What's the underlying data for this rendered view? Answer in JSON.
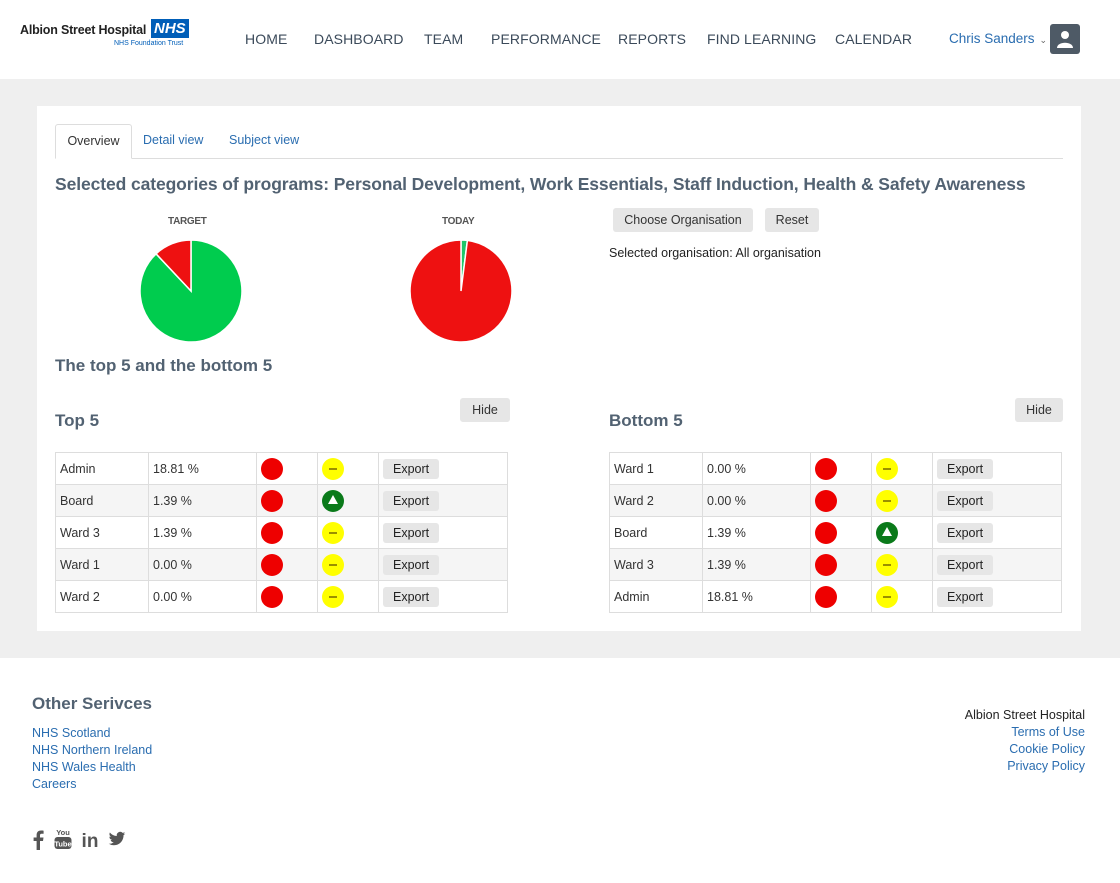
{
  "header": {
    "logo": {
      "name": "Albion Street Hospital",
      "badge": "NHS",
      "subtitle": "NHS Foundation Trust"
    },
    "nav": [
      "HOME",
      "DASHBOARD",
      "TEAM",
      "PERFORMANCE",
      "REPORTS",
      "FIND LEARNING",
      "CALENDAR"
    ],
    "user_name": "Chris Sanders",
    "user_chevron": "⌄",
    "avatar_icon": "user-icon"
  },
  "tabs": [
    "Overview",
    "Detail view",
    "Subject view"
  ],
  "selected_title": "Selected categories of programs: Personal Development, Work Essentials, Staff Induction, Health & Safety Awareness",
  "chart_data": [
    {
      "type": "pie",
      "title": "TARGET",
      "values": [
        88,
        12
      ],
      "colors": [
        "#00cc4e",
        "#ee1111"
      ]
    },
    {
      "type": "pie",
      "title": "TODAY",
      "values": [
        2,
        98
      ],
      "colors": [
        "#1ec76a",
        "#ee1111"
      ]
    }
  ],
  "org": {
    "choose_label": "Choose Organisation",
    "reset_label": "Reset",
    "selected_text": "Selected organisation: All organisation"
  },
  "section_title": "The top 5 and the bottom 5",
  "hide_label": "Hide",
  "export_label": "Export",
  "colors": {
    "red": "#ee0000",
    "yellow": "#ffff00",
    "green": "#0a7a1a"
  },
  "top5": {
    "title": "Top 5",
    "rows": [
      {
        "name": "Admin",
        "value": "18.81 %",
        "status": "red",
        "trend": "yellow"
      },
      {
        "name": "Board",
        "value": "1.39 %",
        "status": "red",
        "trend": "green"
      },
      {
        "name": "Ward 3",
        "value": "1.39 %",
        "status": "red",
        "trend": "yellow"
      },
      {
        "name": "Ward 1",
        "value": "0.00 %",
        "status": "red",
        "trend": "yellow"
      },
      {
        "name": "Ward 2",
        "value": "0.00 %",
        "status": "red",
        "trend": "yellow"
      }
    ]
  },
  "bottom5": {
    "title": "Bottom 5",
    "rows": [
      {
        "name": "Ward 1",
        "value": "0.00 %",
        "status": "red",
        "trend": "yellow"
      },
      {
        "name": "Ward 2",
        "value": "0.00 %",
        "status": "red",
        "trend": "yellow"
      },
      {
        "name": "Board",
        "value": "1.39 %",
        "status": "red",
        "trend": "green"
      },
      {
        "name": "Ward 3",
        "value": "1.39 %",
        "status": "red",
        "trend": "yellow"
      },
      {
        "name": "Admin",
        "value": "18.81 %",
        "status": "red",
        "trend": "yellow"
      }
    ]
  },
  "footer": {
    "other_title": "Other Serivces",
    "links": [
      "NHS Scotland",
      "NHS Northern Ireland",
      "NHS Wales Health",
      "Careers"
    ],
    "org_name": "Albion Street Hospital",
    "legal": [
      "Terms of Use",
      "Cookie Policy",
      "Privacy Policy"
    ],
    "social_icons": [
      "facebook-icon",
      "youtube-icon",
      "linkedin-icon",
      "twitter-icon"
    ],
    "youtube_text": [
      "You",
      "Tube"
    ],
    "linkedin_text": "in"
  }
}
